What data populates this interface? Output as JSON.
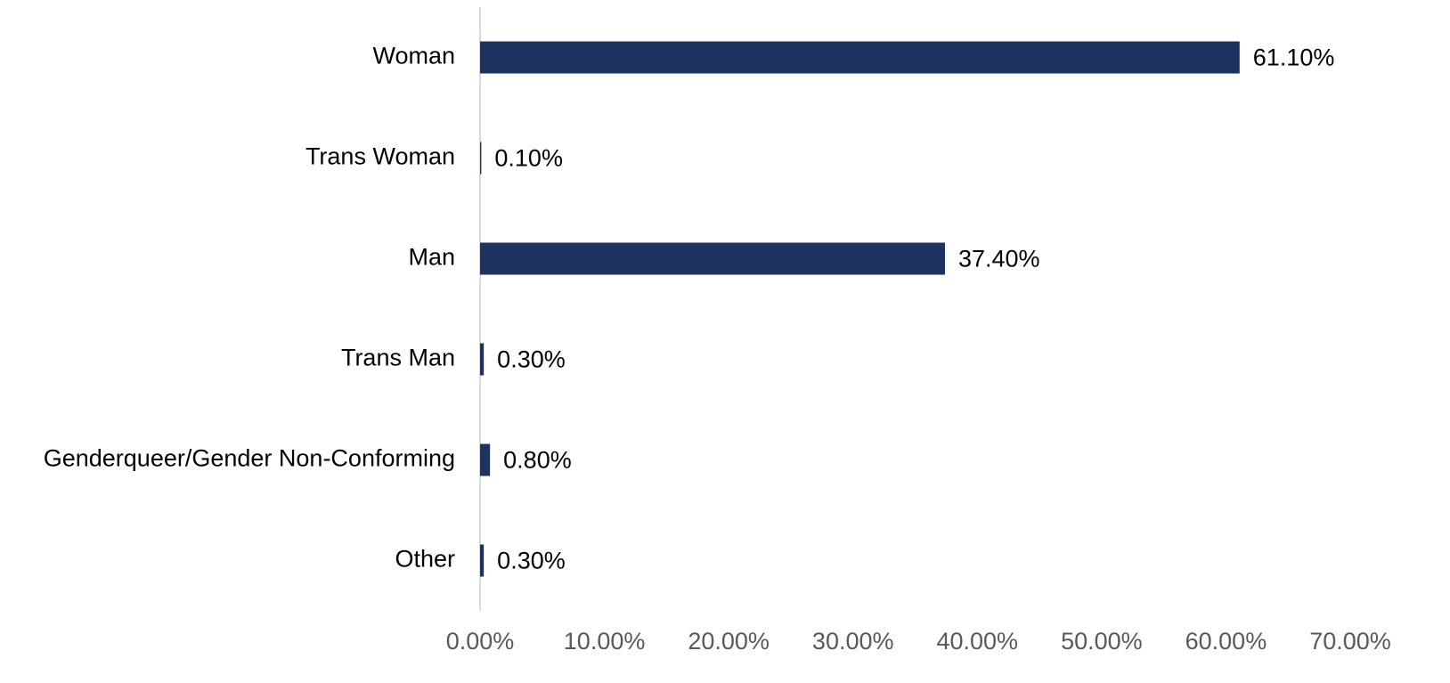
{
  "chart_data": {
    "type": "bar",
    "orientation": "horizontal",
    "categories": [
      "Woman",
      "Trans Woman",
      "Man",
      "Trans Man",
      "Genderqueer/Gender Non-Conforming",
      "Other"
    ],
    "values": [
      61.1,
      0.1,
      37.4,
      0.3,
      0.8,
      0.3
    ],
    "value_labels": [
      "61.10%",
      "0.10%",
      "37.40%",
      "0.30%",
      "0.80%",
      "0.30%"
    ],
    "color": "#1c335f",
    "xlim": [
      0,
      70
    ],
    "xticks": [
      {
        "value": 0,
        "label": "0.00%"
      },
      {
        "value": 10,
        "label": "10.00%"
      },
      {
        "value": 20,
        "label": "20.00%"
      },
      {
        "value": 30,
        "label": "30.00%"
      },
      {
        "value": 40,
        "label": "40.00%"
      },
      {
        "value": 50,
        "label": "50.00%"
      },
      {
        "value": 60,
        "label": "60.00%"
      },
      {
        "value": 70,
        "label": "70.00%"
      }
    ],
    "grid": false
  }
}
